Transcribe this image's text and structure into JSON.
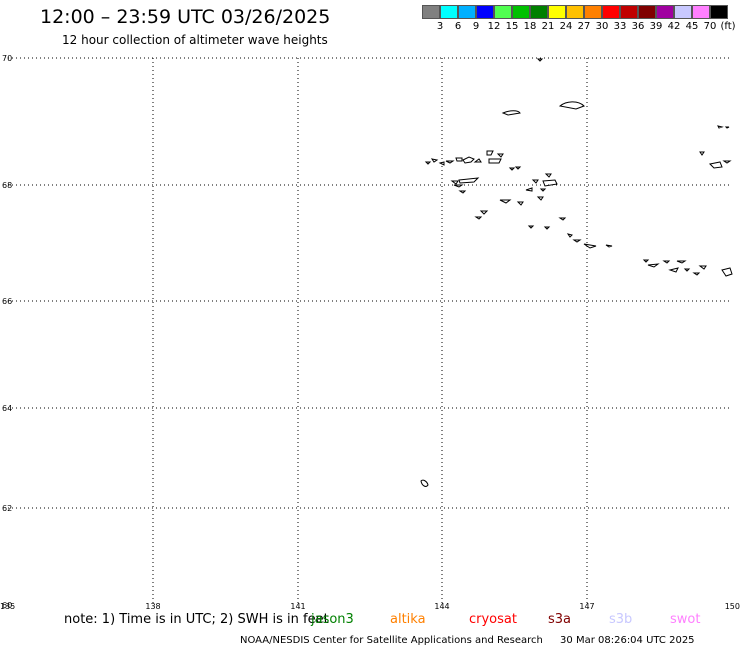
{
  "header": {
    "title": "12:00 – 23:59 UTC 03/26/2025",
    "subtitle": "12 hour collection of altimeter wave heights"
  },
  "legend": {
    "unit": "(ft)",
    "colors": [
      "#808080",
      "#00ffff",
      "#00b0ff",
      "#0000ff",
      "#50ff50",
      "#00c000",
      "#008000",
      "#ffff00",
      "#ffc000",
      "#ff8000",
      "#ff0000",
      "#c00000",
      "#800000",
      "#a000a0",
      "#c8c8ff",
      "#ff80ff",
      "#000000"
    ],
    "labels": [
      "3",
      "6",
      "9",
      "12",
      "15",
      "18",
      "21",
      "24",
      "27",
      "30",
      "33",
      "36",
      "39",
      "42",
      "45",
      "70"
    ]
  },
  "map": {
    "lat_range": [
      60,
      70
    ],
    "lon_range": [
      135,
      150
    ],
    "lat_ticks": [
      "70",
      "68",
      "66",
      "64",
      "62",
      "60"
    ],
    "lon_ticks": [
      "135",
      "138",
      "141",
      "144",
      "147",
      "150"
    ],
    "grid": "dotted"
  },
  "note": {
    "text": "note: 1) Time is in UTC; 2) SWH is in feet",
    "satellites": [
      {
        "name": "jason3",
        "color": "#008000"
      },
      {
        "name": "altika",
        "color": "#ff8000"
      },
      {
        "name": "cryosat",
        "color": "#ff0000"
      },
      {
        "name": "s3a",
        "color": "#800000"
      },
      {
        "name": "s3b",
        "color": "#c8c8ff"
      },
      {
        "name": "swot",
        "color": "#ff80ff"
      }
    ]
  },
  "footer": {
    "credit": "NOAA/NESDIS Center for Satellite Applications and Research",
    "timestamp": "30 Mar 08:26:04 UTC 2025"
  }
}
